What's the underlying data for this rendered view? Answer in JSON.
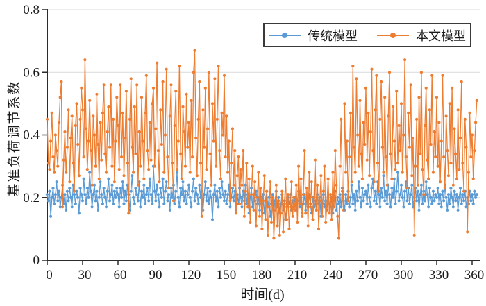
{
  "figure": {
    "background": "#ffffff",
    "axis_color": "#2b2b2b",
    "grid_color": "#d9d9d9",
    "text_color": "#1a1a1a"
  },
  "chart_data": {
    "type": "line",
    "title": "",
    "xlabel": "时间(d)",
    "ylabel": "基准负荷调节系数",
    "xlim": [
      0,
      367
    ],
    "ylim": [
      0,
      0.8
    ],
    "x_ticks": [
      0,
      30,
      60,
      90,
      120,
      150,
      180,
      210,
      240,
      270,
      300,
      330,
      360
    ],
    "y_ticks": [
      0,
      0.2,
      0.4,
      0.6,
      0.8
    ],
    "grid": "horizontal",
    "legend_position": "top-right-inside",
    "x_start": 0,
    "x_step": 1,
    "marker": "circle",
    "series": [
      {
        "name": "传统模型",
        "color": "#5B9BD5",
        "values": [
          0.21,
          0.19,
          0.22,
          0.14,
          0.2,
          0.23,
          0.18,
          0.21,
          0.25,
          0.19,
          0.22,
          0.17,
          0.2,
          0.24,
          0.18,
          0.21,
          0.16,
          0.22,
          0.19,
          0.23,
          0.2,
          0.17,
          0.24,
          0.21,
          0.18,
          0.22,
          0.2,
          0.15,
          0.23,
          0.21,
          0.19,
          0.26,
          0.21,
          0.18,
          0.23,
          0.2,
          0.28,
          0.22,
          0.17,
          0.21,
          0.24,
          0.19,
          0.22,
          0.16,
          0.2,
          0.25,
          0.21,
          0.18,
          0.23,
          0.2,
          0.17,
          0.22,
          0.26,
          0.19,
          0.21,
          0.24,
          0.18,
          0.22,
          0.2,
          0.23,
          0.21,
          0.17,
          0.23,
          0.2,
          0.25,
          0.18,
          0.22,
          0.19,
          0.24,
          0.21,
          0.16,
          0.22,
          0.27,
          0.2,
          0.18,
          0.23,
          0.21,
          0.19,
          0.25,
          0.17,
          0.22,
          0.2,
          0.24,
          0.18,
          0.21,
          0.23,
          0.19,
          0.26,
          0.21,
          0.18,
          0.3,
          0.22,
          0.19,
          0.24,
          0.21,
          0.17,
          0.23,
          0.2,
          0.26,
          0.18,
          0.22,
          0.25,
          0.19,
          0.21,
          0.16,
          0.23,
          0.2,
          0.24,
          0.18,
          0.22,
          0.28,
          0.2,
          0.17,
          0.23,
          0.21,
          0.25,
          0.19,
          0.22,
          0.18,
          0.21,
          0.24,
          0.2,
          0.17,
          0.22,
          0.26,
          0.19,
          0.23,
          0.21,
          0.18,
          0.24,
          0.2,
          0.22,
          0.16,
          0.21,
          0.25,
          0.19,
          0.23,
          0.18,
          0.22,
          0.2,
          0.13,
          0.21,
          0.24,
          0.19,
          0.22,
          0.17,
          0.23,
          0.2,
          0.25,
          0.21,
          0.19,
          0.22,
          0.18,
          0.21,
          0.24,
          0.17,
          0.2,
          0.23,
          0.19,
          0.22,
          0.16,
          0.21,
          0.18,
          0.23,
          0.2,
          0.17,
          0.22,
          0.19,
          0.24,
          0.18,
          0.21,
          0.15,
          0.2,
          0.23,
          0.17,
          0.21,
          0.19,
          0.22,
          0.18,
          0.2,
          0.16,
          0.2,
          0.18,
          0.21,
          0.15,
          0.19,
          0.22,
          0.17,
          0.2,
          0.14,
          0.18,
          0.21,
          0.16,
          0.19,
          0.22,
          0.17,
          0.2,
          0.15,
          0.18,
          0.21,
          0.16,
          0.19,
          0.13,
          0.17,
          0.2,
          0.18,
          0.21,
          0.16,
          0.19,
          0.17,
          0.2,
          0.16,
          0.19,
          0.22,
          0.17,
          0.2,
          0.15,
          0.18,
          0.21,
          0.16,
          0.19,
          0.17,
          0.21,
          0.18,
          0.15,
          0.2,
          0.17,
          0.19,
          0.16,
          0.21,
          0.18,
          0.2,
          0.14,
          0.18,
          0.21,
          0.17,
          0.19,
          0.16,
          0.2,
          0.18,
          0.17,
          0.2,
          0.15,
          0.19,
          0.22,
          0.16,
          0.2,
          0.18,
          0.21,
          0.17,
          0.23,
          0.19,
          0.16,
          0.21,
          0.18,
          0.22,
          0.17,
          0.2,
          0.24,
          0.18,
          0.21,
          0.16,
          0.22,
          0.19,
          0.25,
          0.2,
          0.17,
          0.23,
          0.19,
          0.21,
          0.22,
          0.18,
          0.24,
          0.2,
          0.17,
          0.23,
          0.26,
          0.19,
          0.22,
          0.18,
          0.25,
          0.21,
          0.17,
          0.23,
          0.2,
          0.27,
          0.19,
          0.22,
          0.18,
          0.24,
          0.21,
          0.17,
          0.23,
          0.2,
          0.26,
          0.18,
          0.22,
          0.28,
          0.19,
          0.21,
          0.24,
          0.2,
          0.17,
          0.22,
          0.25,
          0.19,
          0.23,
          0.18,
          0.21,
          0.24,
          0.17,
          0.2,
          0.23,
          0.19,
          0.22,
          0.16,
          0.21,
          0.24,
          0.18,
          0.22,
          0.19,
          0.25,
          0.21,
          0.17,
          0.23,
          0.2,
          0.18,
          0.22,
          0.19,
          0.21,
          0.2,
          0.23,
          0.18,
          0.21,
          0.17,
          0.22,
          0.19,
          0.24,
          0.2,
          0.16,
          0.21,
          0.18,
          0.23,
          0.2,
          0.17,
          0.22,
          0.19,
          0.21,
          0.16,
          0.2,
          0.23,
          0.18,
          0.21,
          0.19,
          0.22,
          0.17,
          0.2,
          0.18,
          0.22,
          0.19,
          0.21,
          0.18,
          0.22,
          0.2,
          0.21
        ]
      },
      {
        "name": "本文模型",
        "color": "#ED7D31",
        "values": [
          0.45,
          0.31,
          0.29,
          0.38,
          0.47,
          0.33,
          0.28,
          0.4,
          0.35,
          0.3,
          0.44,
          0.52,
          0.57,
          0.17,
          0.32,
          0.41,
          0.28,
          0.36,
          0.48,
          0.25,
          0.39,
          0.46,
          0.31,
          0.22,
          0.43,
          0.5,
          0.37,
          0.27,
          0.45,
          0.55,
          0.48,
          0.33,
          0.64,
          0.42,
          0.29,
          0.38,
          0.51,
          0.35,
          0.24,
          0.46,
          0.4,
          0.3,
          0.53,
          0.37,
          0.26,
          0.44,
          0.32,
          0.47,
          0.56,
          0.34,
          0.28,
          0.41,
          0.49,
          0.36,
          0.56,
          0.3,
          0.45,
          0.25,
          0.38,
          0.52,
          0.43,
          0.29,
          0.56,
          0.33,
          0.47,
          0.27,
          0.39,
          0.54,
          0.31,
          0.15,
          0.45,
          0.58,
          0.36,
          0.28,
          0.49,
          0.34,
          0.56,
          0.24,
          0.41,
          0.3,
          0.52,
          0.38,
          0.26,
          0.47,
          0.59,
          0.35,
          0.29,
          0.44,
          0.32,
          0.5,
          0.55,
          0.3,
          0.42,
          0.63,
          0.35,
          0.25,
          0.48,
          0.37,
          0.57,
          0.28,
          0.4,
          0.61,
          0.33,
          0.23,
          0.46,
          0.56,
          0.31,
          0.19,
          0.43,
          0.54,
          0.29,
          0.38,
          0.62,
          0.34,
          0.26,
          0.49,
          0.41,
          0.3,
          0.53,
          0.36,
          0.44,
          0.28,
          0.51,
          0.33,
          0.6,
          0.67,
          0.39,
          0.27,
          0.45,
          0.57,
          0.31,
          0.14,
          0.48,
          0.36,
          0.55,
          0.29,
          0.42,
          0.6,
          0.34,
          0.24,
          0.5,
          0.38,
          0.58,
          0.3,
          0.45,
          0.62,
          0.35,
          0.26,
          0.47,
          0.4,
          0.59,
          0.33,
          0.46,
          0.28,
          0.38,
          0.19,
          0.31,
          0.42,
          0.24,
          0.35,
          0.15,
          0.27,
          0.33,
          0.18,
          0.29,
          0.24,
          0.35,
          0.14,
          0.22,
          0.31,
          0.17,
          0.26,
          0.12,
          0.21,
          0.3,
          0.16,
          0.25,
          0.11,
          0.2,
          0.28,
          0.14,
          0.23,
          0.1,
          0.19,
          0.27,
          0.13,
          0.22,
          0.08,
          0.17,
          0.25,
          0.12,
          0.2,
          0.07,
          0.16,
          0.24,
          0.11,
          0.19,
          0.08,
          0.15,
          0.22,
          0.09,
          0.18,
          0.26,
          0.13,
          0.21,
          0.1,
          0.17,
          0.25,
          0.14,
          0.2,
          0.16,
          0.24,
          0.12,
          0.3,
          0.18,
          0.26,
          0.14,
          0.21,
          0.35,
          0.15,
          0.23,
          0.11,
          0.28,
          0.17,
          0.25,
          0.13,
          0.2,
          0.32,
          0.16,
          0.24,
          0.1,
          0.19,
          0.27,
          0.14,
          0.22,
          0.3,
          0.12,
          0.18,
          0.26,
          0.15,
          0.21,
          0.13,
          0.28,
          0.17,
          0.35,
          0.24,
          0.14,
          0.07,
          0.3,
          0.45,
          0.22,
          0.16,
          0.5,
          0.28,
          0.38,
          0.19,
          0.33,
          0.47,
          0.25,
          0.62,
          0.36,
          0.28,
          0.58,
          0.4,
          0.3,
          0.51,
          0.34,
          0.26,
          0.44,
          0.37,
          0.55,
          0.32,
          0.47,
          0.27,
          0.41,
          0.61,
          0.35,
          0.25,
          0.48,
          0.59,
          0.31,
          0.22,
          0.45,
          0.57,
          0.36,
          0.28,
          0.52,
          0.33,
          0.24,
          0.46,
          0.6,
          0.34,
          0.26,
          0.49,
          0.38,
          0.29,
          0.54,
          0.31,
          0.43,
          0.35,
          0.5,
          0.28,
          0.4,
          0.64,
          0.33,
          0.23,
          0.47,
          0.36,
          0.56,
          0.27,
          0.39,
          0.08,
          0.3,
          0.45,
          0.24,
          0.52,
          0.34,
          0.6,
          0.29,
          0.21,
          0.43,
          0.55,
          0.32,
          0.26,
          0.48,
          0.37,
          0.59,
          0.28,
          0.41,
          0.33,
          0.52,
          0.3,
          0.44,
          0.25,
          0.38,
          0.59,
          0.33,
          0.23,
          0.46,
          0.35,
          0.27,
          0.5,
          0.31,
          0.55,
          0.24,
          0.42,
          0.34,
          0.26,
          0.48,
          0.29,
          0.39,
          0.57,
          0.31,
          0.22,
          0.45,
          0.36,
          0.09,
          0.28,
          0.47,
          0.33,
          0.4,
          0.26,
          0.35,
          0.44,
          0.51
        ]
      }
    ]
  }
}
